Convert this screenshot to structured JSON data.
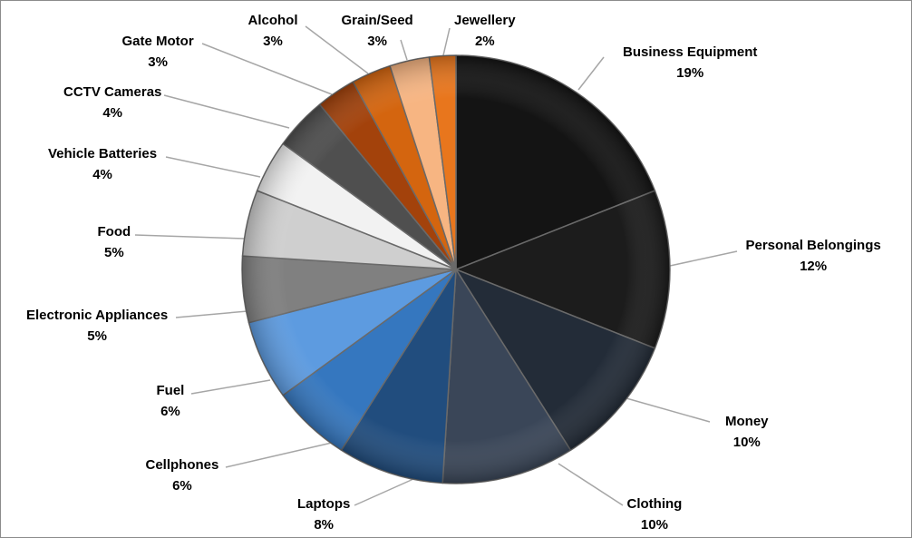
{
  "chart_data": {
    "type": "pie",
    "title": "",
    "slices": [
      {
        "label": "Business Equipment",
        "value": 19,
        "display": "19%",
        "color": "#141414"
      },
      {
        "label": "Personal Belongings",
        "value": 12,
        "display": "12%",
        "color": "#1c1c1c"
      },
      {
        "label": "Money",
        "value": 10,
        "display": "10%",
        "color": "#232c38"
      },
      {
        "label": "Clothing",
        "value": 10,
        "display": "10%",
        "color": "#3a4658"
      },
      {
        "label": "Laptops",
        "value": 8,
        "display": "8%",
        "color": "#214d7e"
      },
      {
        "label": "Cellphones",
        "value": 6,
        "display": "6%",
        "color": "#3577bf"
      },
      {
        "label": "Fuel",
        "value": 6,
        "display": "6%",
        "color": "#5d9be0"
      },
      {
        "label": "Electronic Appliances",
        "value": 5,
        "display": "5%",
        "color": "#808080"
      },
      {
        "label": "Food",
        "value": 5,
        "display": "5%",
        "color": "#cfcfcf"
      },
      {
        "label": "Vehicle Batteries",
        "value": 4,
        "display": "4%",
        "color": "#f2f2f2"
      },
      {
        "label": "CCTV Cameras",
        "value": 4,
        "display": "4%",
        "color": "#4f4f4f"
      },
      {
        "label": "Gate Motor",
        "value": 3,
        "display": "3%",
        "color": "#a3420b"
      },
      {
        "label": "Alcohol",
        "value": 3,
        "display": "3%",
        "color": "#d4650f"
      },
      {
        "label": "Grain/Seed",
        "value": 3,
        "display": "3%",
        "color": "#f7b582"
      },
      {
        "label": "Jewellery",
        "value": 2,
        "display": "2%",
        "color": "#e8761d"
      }
    ]
  }
}
